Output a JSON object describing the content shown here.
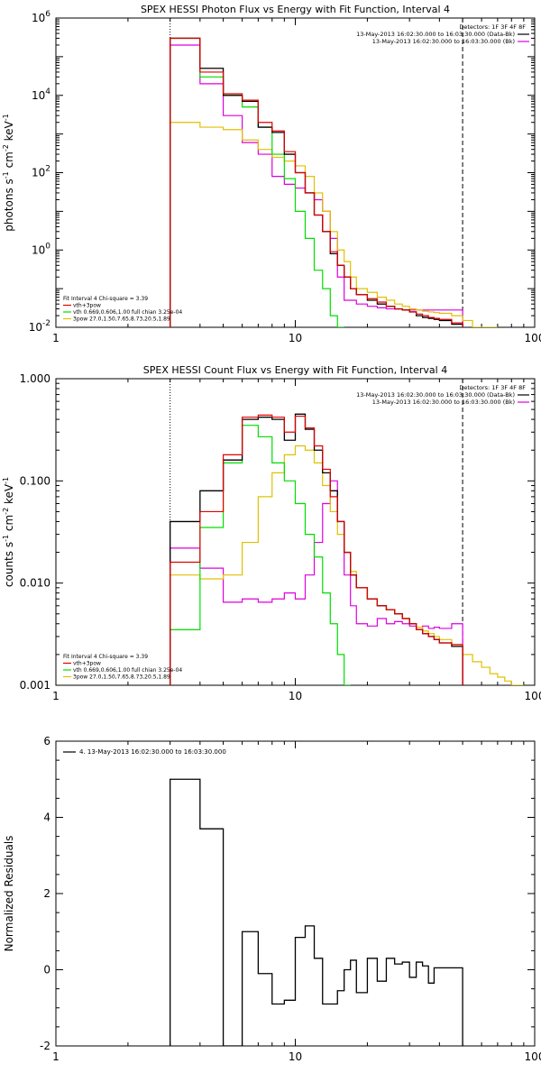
{
  "colors": {
    "data": "#000000",
    "total": "#e00000",
    "thermal": "#00dd00",
    "powerlaw": "#e0c000",
    "background": "#dd00dd"
  },
  "chart_data": [
    {
      "id": "photon",
      "type": "line",
      "title": "SPEX HESSI Photon Flux vs Energy with Fit Function, Interval 4",
      "ylabel": "photons s",
      "ylabel_sup": "-1",
      "ylabel_mid": " cm",
      "ylabel_sup2": "-2",
      "ylabel_end": " keV",
      "ylabel_sup3": "-1",
      "xscale": "log",
      "yscale": "log",
      "xlim": [
        1,
        100
      ],
      "ylim": [
        0.01,
        1000000
      ],
      "xticks": [
        1,
        10,
        100
      ],
      "xtick_labels": [
        "1",
        "10",
        "100"
      ],
      "yticks": [
        0.01,
        1,
        100,
        10000,
        1000000
      ],
      "ytick_labels": [
        [
          "10",
          "-2"
        ],
        [
          "10",
          "0"
        ],
        [
          "10",
          "2"
        ],
        [
          "10",
          "4"
        ],
        [
          "10",
          "6"
        ]
      ],
      "vlines": {
        "dotted": 3,
        "dashed": 50
      },
      "legend_top": [
        "Detectors: 1F 3F 4F 8F",
        "13-May-2013 16:02:30.000 to 16:03:30.000 (Data-Bk)",
        "13-May-2013 16:02:30.000 to 16:03:30.000 (Bk)"
      ],
      "legend_bottom": [
        "Fit Interval 4   Chi-square = 3.39",
        "vth+3pow",
        "vth 0.669,0.606,1.00  full chian 3.25e-04",
        "3pow 27.0,1.50,7.65,8.73,20.5,1.89"
      ],
      "edges": [
        3,
        4,
        5,
        6,
        7,
        8,
        9,
        10,
        11,
        12,
        13,
        14,
        15,
        16,
        17,
        18,
        20,
        22,
        24,
        26,
        28,
        30,
        32,
        34,
        36,
        38,
        40,
        45,
        50,
        55,
        60,
        65,
        70
      ],
      "series": [
        {
          "role": "data",
          "values": [
            300000,
            50000,
            10000,
            7000,
            1500,
            1100,
            300,
            100,
            30,
            8,
            3,
            0.8,
            0.4,
            0.2,
            0.1,
            0.07,
            0.05,
            0.04,
            0.035,
            0.03,
            0.028,
            0.025,
            0.02,
            0.018,
            0.017,
            0.016,
            0.015,
            0.012
          ]
        },
        {
          "role": "total",
          "values": [
            300000,
            40000,
            11000,
            7500,
            2000,
            1200,
            350,
            100,
            30,
            8,
            3,
            0.9,
            0.4,
            0.2,
            0.1,
            0.07,
            0.055,
            0.045,
            0.035,
            0.03,
            0.028,
            0.025,
            0.022,
            0.02,
            0.018,
            0.017,
            0.016,
            0.013
          ]
        },
        {
          "role": "thermal",
          "values": [
            300000,
            30000,
            10000,
            5000,
            1500,
            300,
            70,
            10,
            2,
            0.3,
            0.1,
            0.02,
            0.005
          ]
        },
        {
          "role": "powerlaw",
          "values": [
            2000,
            1500,
            1300,
            700,
            400,
            250,
            200,
            150,
            80,
            30,
            10,
            3,
            1,
            0.5,
            0.2,
            0.1,
            0.08,
            0.06,
            0.05,
            0.04,
            0.035,
            0.03,
            0.028,
            0.026,
            0.025,
            0.024,
            0.023,
            0.02,
            0.015,
            0.01,
            0.008,
            0.006
          ]
        },
        {
          "role": "background",
          "values": [
            200000,
            20000,
            3000,
            600,
            300,
            80,
            50,
            40,
            30,
            20,
            10,
            2,
            0.2,
            0.05,
            0.05,
            0.04,
            0.035,
            0.032,
            0.03,
            0.03,
            0.028,
            0.028,
            0.028,
            0.028,
            0.028,
            0.028,
            0.028,
            0.028
          ]
        }
      ]
    },
    {
      "id": "count",
      "type": "line",
      "title": "SPEX HESSI Count Flux vs Energy with Fit Function, Interval 4",
      "ylabel": "counts s",
      "ylabel_sup": "-1",
      "ylabel_mid": " cm",
      "ylabel_sup2": "-2",
      "ylabel_end": " keV",
      "ylabel_sup3": "-1",
      "xscale": "log",
      "yscale": "log",
      "xlim": [
        1,
        100
      ],
      "ylim": [
        0.001,
        1
      ],
      "xticks": [
        1,
        10,
        100
      ],
      "xtick_labels": [
        "1",
        "10",
        "100"
      ],
      "yticks": [
        0.001,
        0.01,
        0.1,
        1
      ],
      "ytick_labels": [
        [
          "0.001",
          ""
        ],
        [
          "0.010",
          ""
        ],
        [
          "0.100",
          ""
        ],
        [
          "1.000",
          ""
        ]
      ],
      "vlines": {
        "dotted": 3,
        "dashed": 50
      },
      "legend_top": [
        "Detectors: 1F 3F 4F 8F",
        "13-May-2013 16:02:30.000 to 16:03:30.000 (Data-Bk)",
        "13-May-2013 16:02:30.000 to 16:03:30.000 (Bk)"
      ],
      "legend_bottom": [
        "Fit Interval 4   Chi-square = 3.39",
        "vth+3pow",
        "vth 0.669,0.606,1.00  full chian 3.25e-04",
        "3pow 27.0,1.50,7.65,8.73,20.5,1.89"
      ],
      "edges": [
        3,
        4,
        5,
        6,
        7,
        8,
        9,
        10,
        11,
        12,
        13,
        14,
        15,
        16,
        17,
        18,
        20,
        22,
        24,
        26,
        28,
        30,
        32,
        34,
        36,
        38,
        40,
        45,
        50,
        55,
        60,
        65,
        70,
        75,
        80,
        85,
        90
      ],
      "series": [
        {
          "role": "data",
          "values": [
            0.04,
            0.08,
            0.16,
            0.4,
            0.42,
            0.4,
            0.25,
            0.45,
            0.32,
            0.2,
            0.12,
            0.08,
            0.04,
            0.02,
            0.012,
            0.009,
            0.007,
            0.006,
            0.0055,
            0.005,
            0.0045,
            0.004,
            0.0035,
            0.0032,
            0.003,
            0.0028,
            0.0026,
            0.0024
          ]
        },
        {
          "role": "total",
          "values": [
            0.016,
            0.05,
            0.18,
            0.42,
            0.44,
            0.42,
            0.3,
            0.43,
            0.33,
            0.22,
            0.13,
            0.07,
            0.04,
            0.02,
            0.012,
            0.009,
            0.007,
            0.006,
            0.0055,
            0.005,
            0.0045,
            0.004,
            0.0035,
            0.0032,
            0.003,
            0.0028,
            0.0026,
            0.0025
          ]
        },
        {
          "role": "thermal",
          "values": [
            0.0035,
            0.035,
            0.15,
            0.35,
            0.27,
            0.15,
            0.1,
            0.06,
            0.03,
            0.018,
            0.008,
            0.004,
            0.002,
            0.001
          ]
        },
        {
          "role": "powerlaw",
          "values": [
            0.012,
            0.011,
            0.012,
            0.025,
            0.07,
            0.12,
            0.18,
            0.22,
            0.2,
            0.15,
            0.09,
            0.05,
            0.03,
            0.02,
            0.013,
            0.009,
            0.007,
            0.006,
            0.0055,
            0.005,
            0.0045,
            0.004,
            0.0037,
            0.0034,
            0.0032,
            0.003,
            0.0028,
            0.0025,
            0.002,
            0.0017,
            0.0015,
            0.0013,
            0.0012,
            0.0011,
            0.001,
            0.001
          ]
        },
        {
          "role": "background",
          "values": [
            0.022,
            0.014,
            0.0065,
            0.007,
            0.0065,
            0.007,
            0.008,
            0.007,
            0.012,
            0.025,
            0.06,
            0.1,
            0.04,
            0.012,
            0.006,
            0.004,
            0.0038,
            0.0045,
            0.004,
            0.0042,
            0.004,
            0.0038,
            0.0035,
            0.0038,
            0.0036,
            0.0037,
            0.0036,
            0.004
          ]
        }
      ]
    },
    {
      "id": "resid",
      "type": "line",
      "title": "",
      "ylabel": "Normalized Residuals",
      "xscale": "log",
      "yscale": "linear",
      "xlim": [
        1,
        100
      ],
      "ylim": [
        -2,
        6
      ],
      "xticks": [
        1,
        10,
        100
      ],
      "xtick_labels": [
        "1",
        "10",
        "100"
      ],
      "yticks": [
        -2,
        0,
        2,
        4,
        6
      ],
      "ytick_labels": [
        [
          "-2",
          ""
        ],
        [
          "0",
          ""
        ],
        [
          "2",
          ""
        ],
        [
          "4",
          ""
        ],
        [
          "6",
          ""
        ]
      ],
      "legend_resid": "4. 13-May-2013 16:02:30.000 to 16:03:30.000",
      "edges": [
        3,
        4,
        5,
        6,
        7,
        8,
        9,
        10,
        11,
        12,
        13,
        14,
        15,
        16,
        17,
        18,
        20,
        22,
        24,
        26,
        28,
        30,
        32,
        34,
        36,
        38,
        40,
        45,
        50
      ],
      "series": [
        {
          "role": "data",
          "values": [
            5.0,
            3.7,
            -2.0,
            1.0,
            -0.1,
            -0.9,
            -0.8,
            0.85,
            1.15,
            0.3,
            -0.9,
            -0.9,
            -0.55,
            0.0,
            0.25,
            -0.6,
            0.3,
            -0.3,
            0.3,
            0.15,
            0.2,
            -0.2,
            0.2,
            0.1,
            -0.35,
            0.05,
            0.05,
            0.05
          ]
        }
      ]
    }
  ]
}
